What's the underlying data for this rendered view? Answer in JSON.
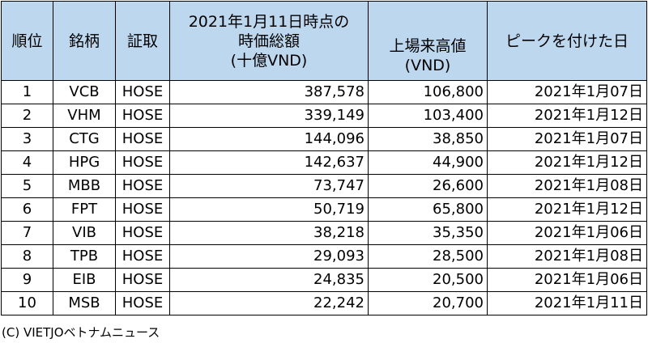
{
  "header": {
    "rank": "順位",
    "name": "銘柄",
    "exchange": "証取",
    "market_cap": [
      "2021年1月11日時点の",
      "時価総額",
      "(十億VND)"
    ],
    "high": [
      "上場来高値",
      "(VND)"
    ],
    "peak_date": "ピークを付けた日"
  },
  "rows": [
    {
      "rank": "1",
      "name": "VCB",
      "exchange": "HOSE",
      "market_cap": "387,578",
      "high": "106,800",
      "date": "2021年1月07日"
    },
    {
      "rank": "2",
      "name": "VHM",
      "exchange": "HOSE",
      "market_cap": "339,149",
      "high": "103,400",
      "date": "2021年1月12日"
    },
    {
      "rank": "3",
      "name": "CTG",
      "exchange": "HOSE",
      "market_cap": "144,096",
      "high": "38,850",
      "date": "2021年1月07日"
    },
    {
      "rank": "4",
      "name": "HPG",
      "exchange": "HOSE",
      "market_cap": "142,637",
      "high": "44,900",
      "date": "2021年1月12日"
    },
    {
      "rank": "5",
      "name": "MBB",
      "exchange": "HOSE",
      "market_cap": "73,747",
      "high": "26,600",
      "date": "2021年1月08日"
    },
    {
      "rank": "6",
      "name": "FPT",
      "exchange": "HOSE",
      "market_cap": "50,719",
      "high": "65,800",
      "date": "2021年1月12日"
    },
    {
      "rank": "7",
      "name": "VIB",
      "exchange": "HOSE",
      "market_cap": "38,218",
      "high": "35,350",
      "date": "2021年1月06日"
    },
    {
      "rank": "8",
      "name": "TPB",
      "exchange": "HOSE",
      "market_cap": "29,093",
      "high": "28,500",
      "date": "2021年1月08日"
    },
    {
      "rank": "9",
      "name": "EIB",
      "exchange": "HOSE",
      "market_cap": "24,835",
      "high": "20,500",
      "date": "2021年1月06日"
    },
    {
      "rank": "10",
      "name": "MSB",
      "exchange": "HOSE",
      "market_cap": "22,242",
      "high": "20,700",
      "date": "2021年1月11日"
    }
  ],
  "footer": {
    "copyright": "(C) VIETJOベトナムニュース"
  },
  "colors": {
    "header_bg": "#bdd7ee",
    "border": "#000000"
  }
}
